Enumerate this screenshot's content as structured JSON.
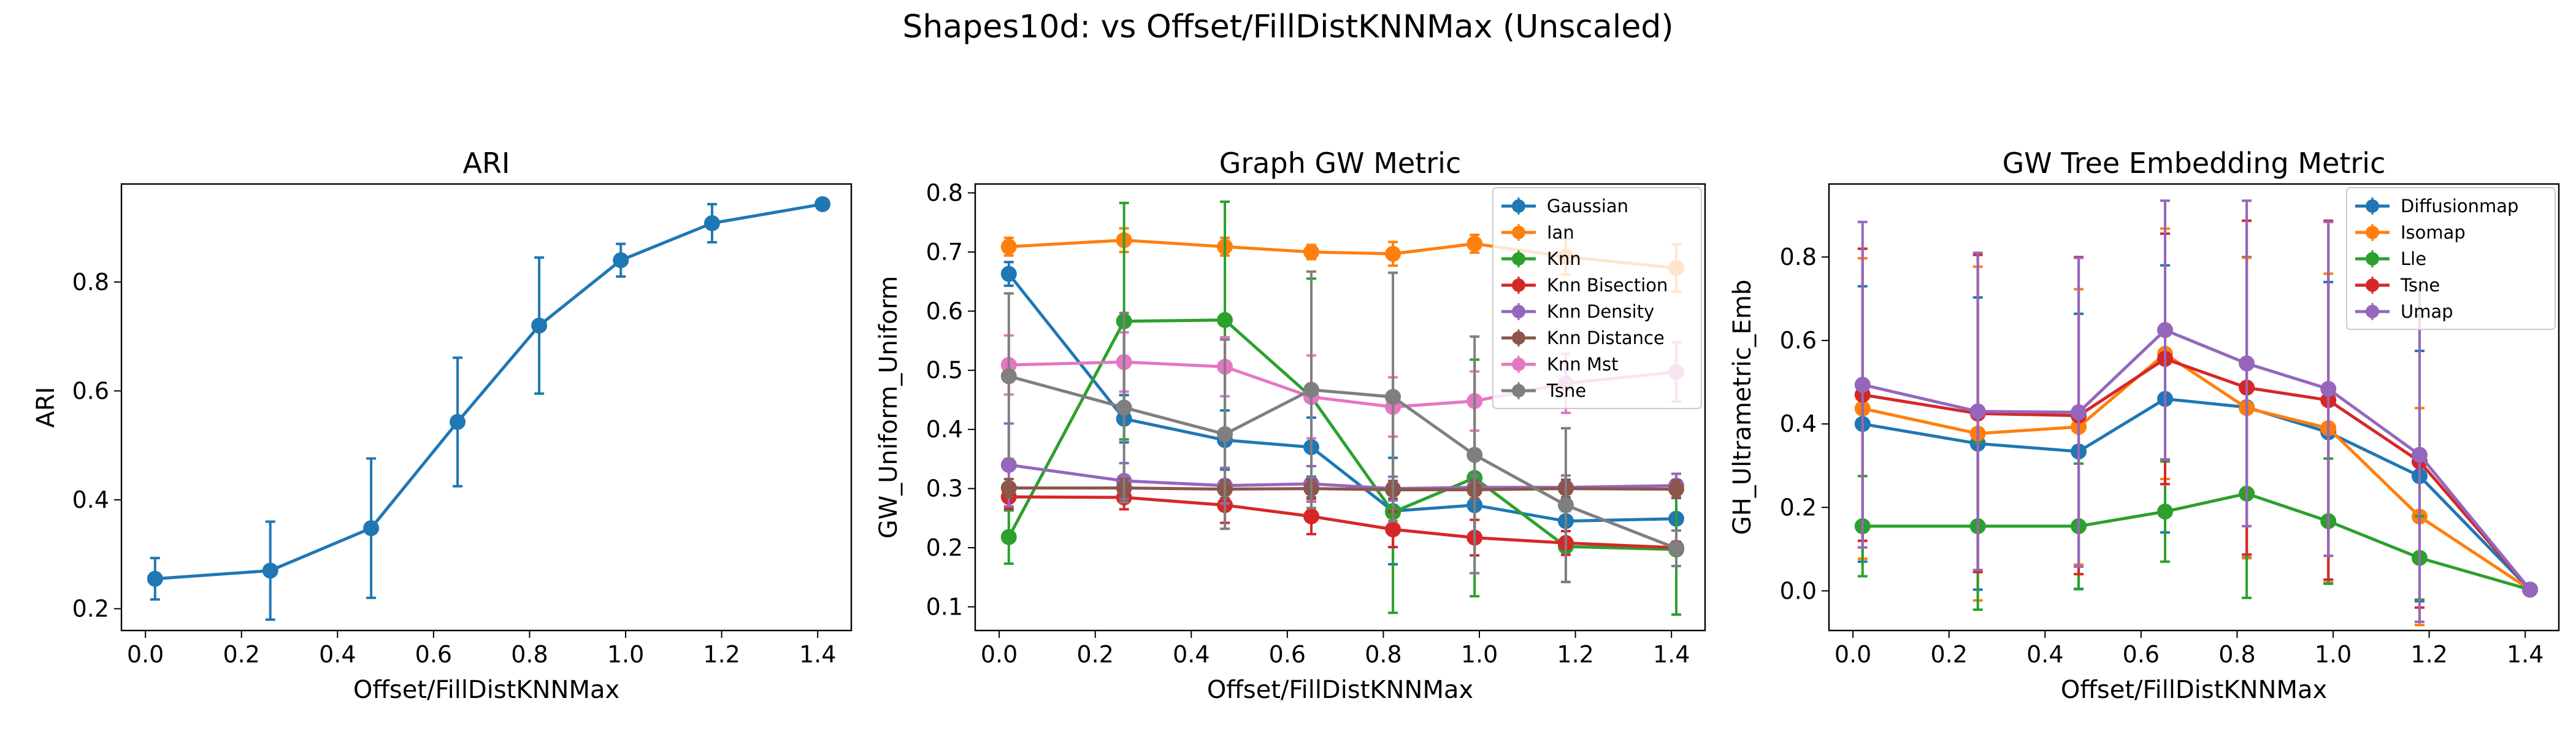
{
  "figure": {
    "title": "Shapes10d: vs Offset/FillDistKNNMax (Unscaled)"
  },
  "colors": {
    "blue": "#1f77b4",
    "orange": "#ff7f0e",
    "green": "#2ca02c",
    "red": "#d62728",
    "purple": "#9467bd",
    "brown": "#8c564b",
    "pink": "#e377c2",
    "gray": "#7f7f7f"
  },
  "chart_data": [
    {
      "type": "line",
      "title": "ARI",
      "xlabel": "Offset/FillDistKNNMax",
      "ylabel": "ARI",
      "xlim": [
        -0.05,
        1.47
      ],
      "ylim": [
        0.16,
        0.98
      ],
      "xticks": [
        "0.0",
        "0.2",
        "0.4",
        "0.6",
        "0.8",
        "1.0",
        "1.2",
        "1.4"
      ],
      "yticks": [
        "0.2",
        "0.4",
        "0.6",
        "0.8"
      ],
      "x": [
        0.02,
        0.26,
        0.47,
        0.65,
        0.82,
        0.99,
        1.18,
        1.41
      ],
      "legend": false,
      "series": [
        {
          "color": "blue",
          "values": [
            0.255,
            0.27,
            0.348,
            0.543,
            0.72,
            0.84,
            0.908,
            0.943
          ],
          "err": [
            0.038,
            0.09,
            0.128,
            0.118,
            0.125,
            0.03,
            0.035,
            0.004
          ]
        }
      ]
    },
    {
      "type": "line",
      "title": "Graph GW Metric",
      "xlabel": "Offset/FillDistKNNMax",
      "ylabel": "GW_Uniform_Uniform",
      "xlim": [
        -0.05,
        1.47
      ],
      "ylim": [
        0.06,
        0.815
      ],
      "xticks": [
        "0.0",
        "0.2",
        "0.4",
        "0.6",
        "0.8",
        "1.0",
        "1.2",
        "1.4"
      ],
      "yticks": [
        "0.1",
        "0.2",
        "0.3",
        "0.4",
        "0.5",
        "0.6",
        "0.7",
        "0.8"
      ],
      "x": [
        0.02,
        0.26,
        0.47,
        0.65,
        0.82,
        0.99,
        1.18,
        1.41
      ],
      "legend": true,
      "legend_position": "top-right",
      "series": [
        {
          "name": "Gaussian",
          "color": "blue",
          "values": [
            0.663,
            0.418,
            0.382,
            0.37,
            0.262,
            0.272,
            0.245,
            0.249
          ],
          "err": [
            0.02,
            0.04,
            0.05,
            0.05,
            0.09,
            0.05,
            0.05,
            0.05
          ]
        },
        {
          "name": "Ian",
          "color": "orange",
          "values": [
            0.709,
            0.72,
            0.709,
            0.7,
            0.697,
            0.714,
            0.692,
            0.673
          ],
          "err": [
            0.015,
            0.02,
            0.015,
            0.012,
            0.02,
            0.015,
            0.03,
            0.04
          ]
        },
        {
          "name": "Knn",
          "color": "green",
          "values": [
            0.218,
            0.583,
            0.585,
            0.455,
            0.26,
            0.318,
            0.202,
            0.197
          ],
          "err": [
            0.045,
            0.2,
            0.2,
            0.2,
            0.17,
            0.2,
            0.06,
            0.11
          ]
        },
        {
          "name": "Knn Bisection",
          "color": "red",
          "values": [
            0.286,
            0.285,
            0.272,
            0.253,
            0.231,
            0.217,
            0.208,
            0.2
          ],
          "err": [
            0.02,
            0.02,
            0.03,
            0.03,
            0.03,
            0.03,
            0.02,
            0.01
          ]
        },
        {
          "name": "Knn Density",
          "color": "purple",
          "values": [
            0.34,
            0.313,
            0.305,
            0.308,
            0.3,
            0.302,
            0.302,
            0.305
          ],
          "err": [
            0.07,
            0.03,
            0.03,
            0.03,
            0.02,
            0.02,
            0.02,
            0.02
          ]
        },
        {
          "name": "Knn Distance",
          "color": "brown",
          "values": [
            0.301,
            0.301,
            0.299,
            0.3,
            0.298,
            0.298,
            0.3,
            0.299
          ],
          "err": [
            0.015,
            0.015,
            0.015,
            0.015,
            0.015,
            0.015,
            0.015,
            0.015
          ]
        },
        {
          "name": "Knn Mst",
          "color": "pink",
          "values": [
            0.509,
            0.514,
            0.506,
            0.455,
            0.438,
            0.448,
            0.478,
            0.497
          ],
          "err": [
            0.05,
            0.05,
            0.05,
            0.07,
            0.05,
            0.05,
            0.05,
            0.05
          ]
        },
        {
          "name": "Tsne",
          "color": "gray",
          "values": [
            0.49,
            0.437,
            0.392,
            0.467,
            0.455,
            0.357,
            0.272,
            0.199
          ],
          "err": [
            0.14,
            0.16,
            0.16,
            0.2,
            0.21,
            0.2,
            0.13,
            0.03
          ]
        }
      ]
    },
    {
      "type": "line",
      "title": "GW Tree Embedding Metric",
      "xlabel": "Offset/FillDistKNNMax",
      "ylabel": "GH_Ultrametric_Emb",
      "xlim": [
        -0.05,
        1.47
      ],
      "ylim": [
        -0.095,
        0.975
      ],
      "xticks": [
        "0.0",
        "0.2",
        "0.4",
        "0.6",
        "0.8",
        "1.0",
        "1.2",
        "1.4"
      ],
      "yticks": [
        "0.0",
        "0.2",
        "0.4",
        "0.6",
        "0.8"
      ],
      "x": [
        0.02,
        0.26,
        0.47,
        0.65,
        0.82,
        0.99,
        1.18,
        1.41
      ],
      "legend": true,
      "legend_position": "top-right",
      "series": [
        {
          "name": "Diffusionmap",
          "color": "blue",
          "values": [
            0.4,
            0.353,
            0.334,
            0.46,
            0.44,
            0.38,
            0.275,
            0.003
          ],
          "err": [
            0.33,
            0.35,
            0.33,
            0.32,
            0.36,
            0.36,
            0.3,
            0.006
          ]
        },
        {
          "name": "Isomap",
          "color": "orange",
          "values": [
            0.437,
            0.377,
            0.393,
            0.568,
            0.438,
            0.39,
            0.178,
            0.003
          ],
          "err": [
            0.36,
            0.4,
            0.33,
            0.3,
            0.36,
            0.37,
            0.26,
            0.006
          ]
        },
        {
          "name": "Lle",
          "color": "green",
          "values": [
            0.155,
            0.155,
            0.155,
            0.19,
            0.233,
            0.167,
            0.079,
            0.003
          ],
          "err": [
            0.12,
            0.2,
            0.15,
            0.12,
            0.25,
            0.15,
            0.1,
            0.006
          ]
        },
        {
          "name": "Tsne",
          "color": "red",
          "values": [
            0.47,
            0.425,
            0.42,
            0.556,
            0.487,
            0.457,
            0.31,
            0.003
          ],
          "err": [
            0.35,
            0.38,
            0.38,
            0.3,
            0.4,
            0.43,
            0.35,
            0.006
          ]
        },
        {
          "name": "Umap",
          "color": "purple",
          "values": [
            0.494,
            0.43,
            0.428,
            0.625,
            0.545,
            0.484,
            0.326,
            0.003
          ],
          "err": [
            0.39,
            0.38,
            0.37,
            0.31,
            0.39,
            0.4,
            0.4,
            0.006
          ]
        }
      ]
    }
  ]
}
